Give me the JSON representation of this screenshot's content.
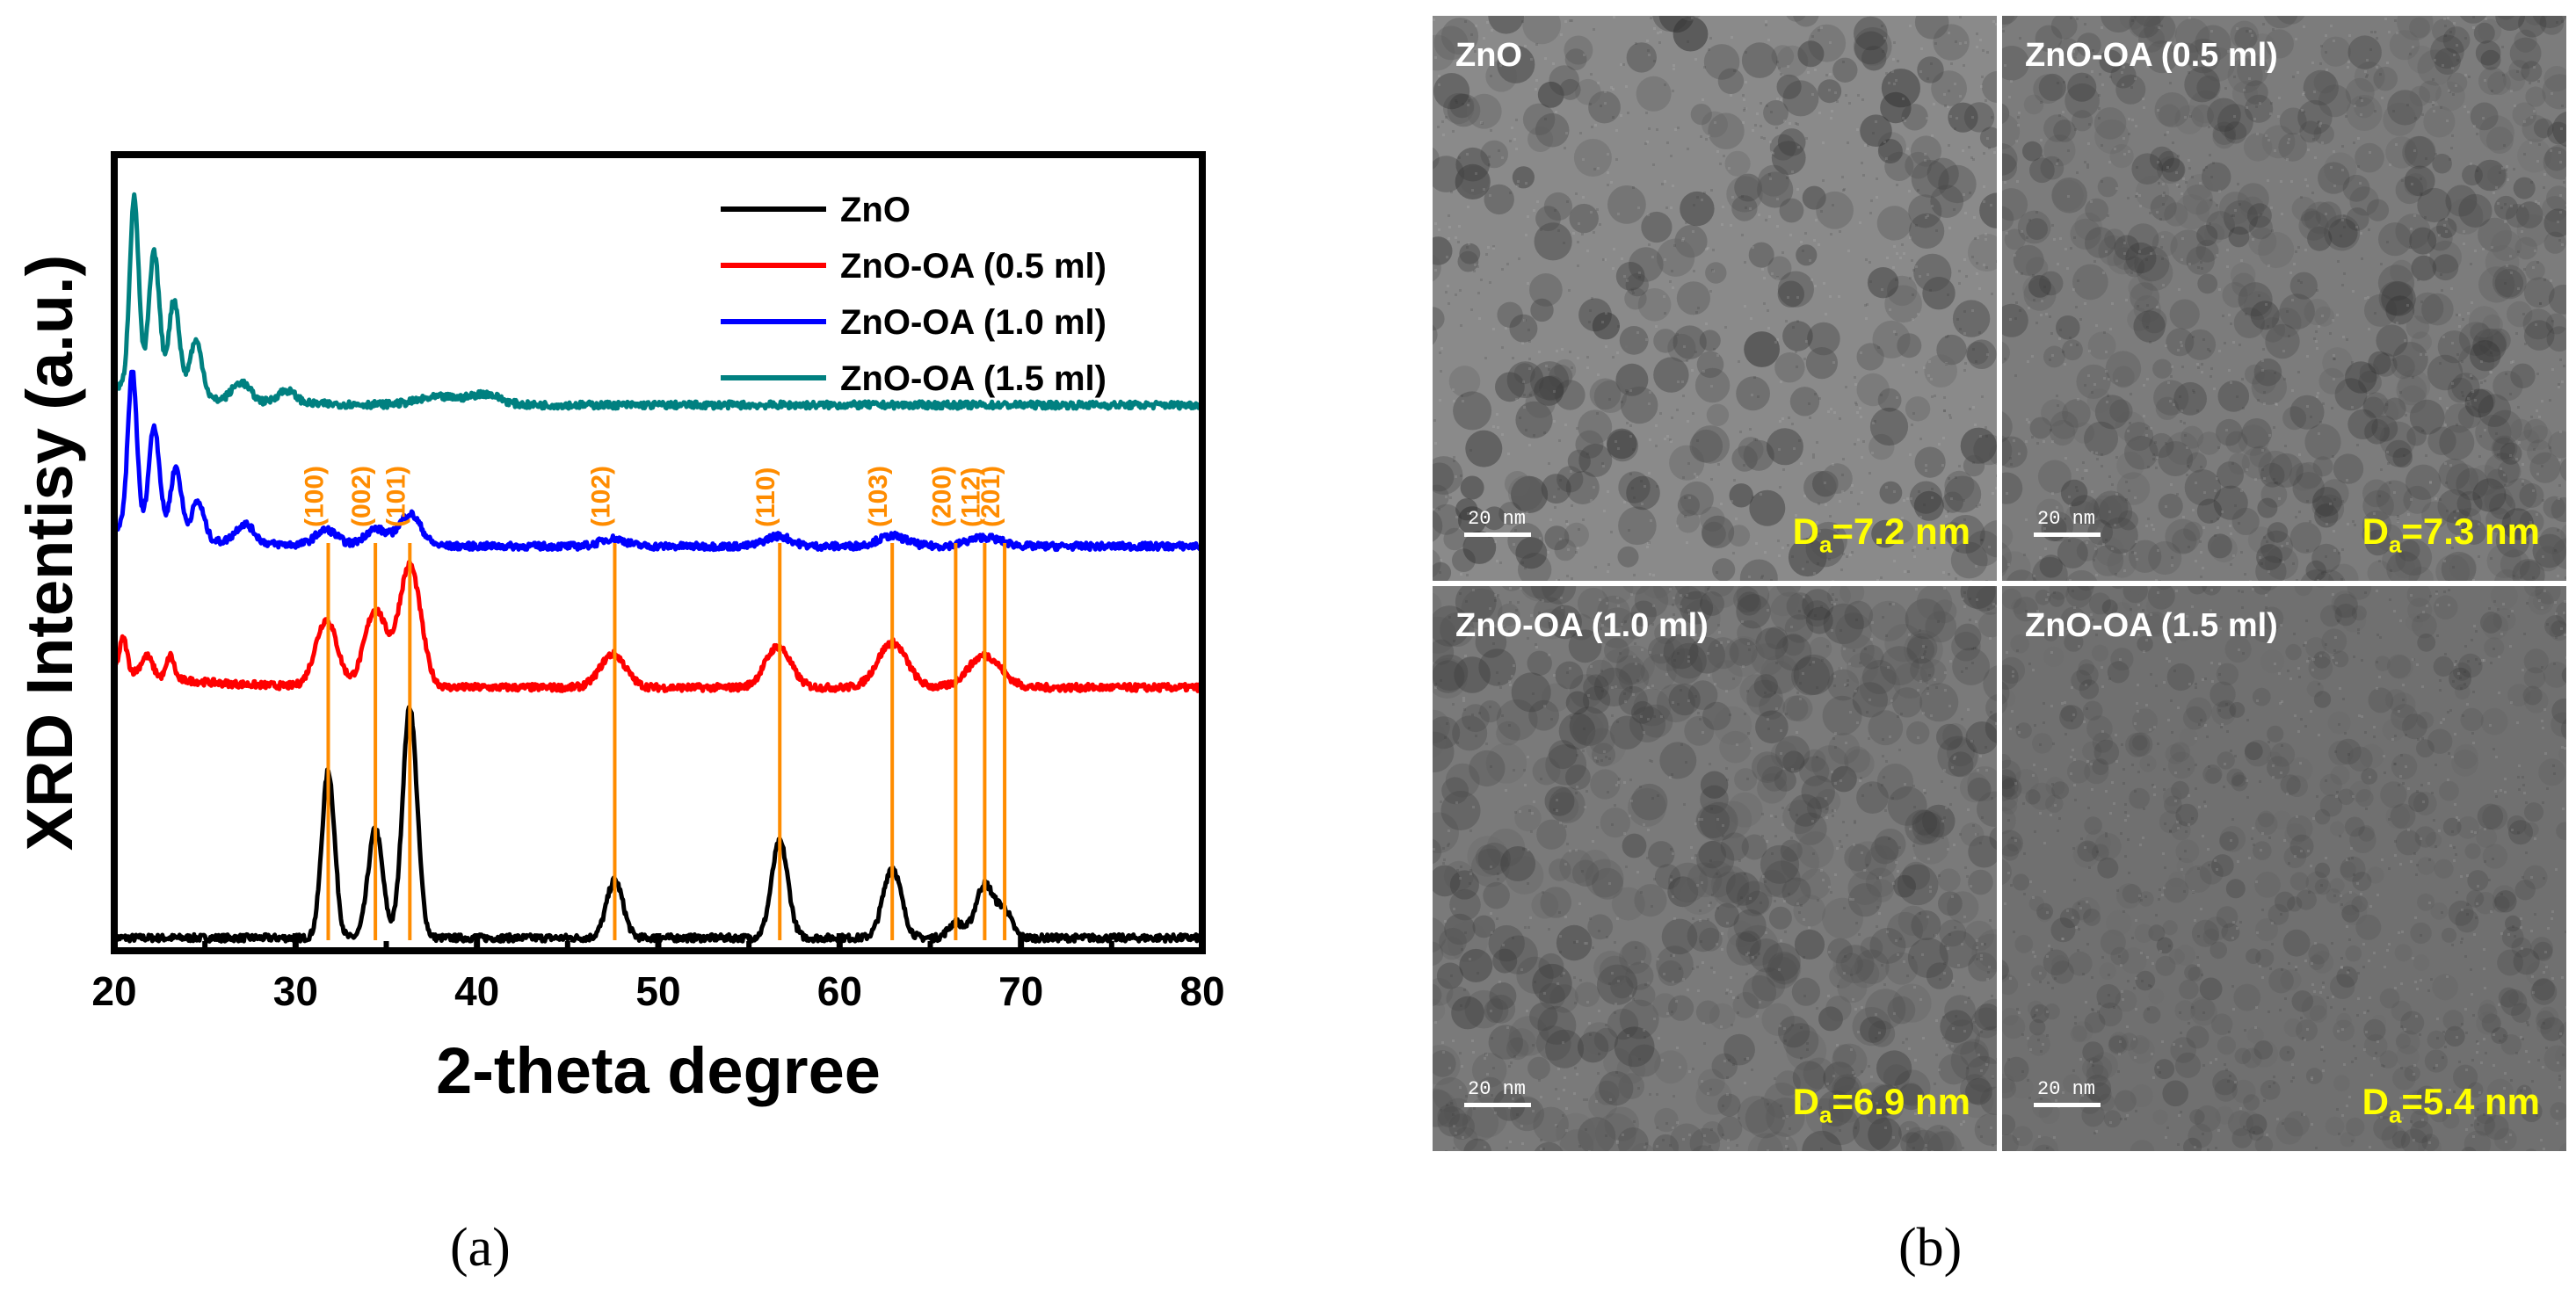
{
  "chart_data": {
    "type": "line",
    "xlabel": "2-theta degree",
    "ylabel": "XRD Intentisy (a.u.)",
    "xlim": [
      20,
      80
    ],
    "xticks": [
      20,
      30,
      40,
      50,
      60,
      70,
      80
    ],
    "legend": {
      "placement": "top-right"
    },
    "series": [
      {
        "name": "ZnO",
        "color": "#000000",
        "offset": 0,
        "baseline": 1.0,
        "peaks": [
          [
            31.8,
            13.0,
            0.35
          ],
          [
            34.4,
            8.5,
            0.4
          ],
          [
            36.3,
            18.0,
            0.4
          ],
          [
            47.6,
            4.5,
            0.45
          ],
          [
            56.7,
            7.5,
            0.45
          ],
          [
            62.9,
            5.5,
            0.5
          ],
          [
            66.4,
            1.2,
            0.4
          ],
          [
            68.0,
            4.2,
            0.5
          ],
          [
            69.1,
            2.0,
            0.4
          ]
        ],
        "low_angle": []
      },
      {
        "name": "ZnO-OA (0.5 ml)",
        "color": "#ff0000",
        "offset": 19.5,
        "baseline": 1.0,
        "peaks": [
          [
            31.7,
            5.2,
            0.6
          ],
          [
            34.4,
            6.0,
            0.6
          ],
          [
            36.3,
            9.5,
            0.6
          ],
          [
            47.5,
            2.6,
            0.7
          ],
          [
            56.6,
            3.2,
            0.7
          ],
          [
            62.9,
            3.5,
            0.8
          ],
          [
            68.0,
            2.5,
            0.9
          ]
        ],
        "low_angle": [
          [
            20.5,
            2.5,
            0.2
          ],
          [
            21.8,
            1.5,
            0.3
          ],
          [
            23.1,
            1.8,
            0.2
          ]
        ]
      },
      {
        "name": "ZnO-OA (1.0 ml)",
        "color": "#0000ff",
        "offset": 30.5,
        "baseline": 1.0,
        "peaks": [
          [
            31.7,
            1.2,
            0.6
          ],
          [
            34.4,
            1.3,
            0.6
          ],
          [
            36.3,
            2.5,
            0.6
          ],
          [
            47.5,
            0.6,
            0.7
          ],
          [
            56.6,
            0.8,
            0.7
          ],
          [
            62.9,
            0.8,
            0.8
          ],
          [
            68.0,
            0.7,
            0.9
          ]
        ],
        "low_angle": [
          [
            21.0,
            12.5,
            0.25
          ],
          [
            22.2,
            8.5,
            0.3
          ],
          [
            23.4,
            5.5,
            0.3
          ],
          [
            24.6,
            3.0,
            0.35
          ],
          [
            27.2,
            1.5,
            0.5
          ]
        ]
      },
      {
        "name": "ZnO-OA (1.5 ml)",
        "color": "#008080",
        "offset": 41.5,
        "baseline": 1.0,
        "peaks": [
          [
            38.0,
            0.6,
            1.2
          ],
          [
            40.5,
            0.8,
            0.8
          ]
        ],
        "low_angle": [
          [
            21.1,
            15.0,
            0.25
          ],
          [
            22.2,
            11.0,
            0.3
          ],
          [
            23.3,
            7.5,
            0.3
          ],
          [
            24.5,
            4.5,
            0.35
          ],
          [
            27.0,
            1.5,
            0.5
          ],
          [
            29.5,
            1.0,
            0.5
          ]
        ]
      }
    ],
    "reference_lines": [
      {
        "label": "(100)",
        "x": 31.8
      },
      {
        "label": "(002)",
        "x": 34.4
      },
      {
        "label": "(101)",
        "x": 36.3
      },
      {
        "label": "(102)",
        "x": 47.6
      },
      {
        "label": "(110)",
        "x": 56.7
      },
      {
        "label": "(103)",
        "x": 62.9
      },
      {
        "label": "(200)",
        "x": 66.4
      },
      {
        "label": "(112)",
        "x": 68.0
      },
      {
        "label": "(201)",
        "x": 69.1
      }
    ],
    "reference_color": "#ff8c00",
    "ylim": [
      0,
      62
    ]
  },
  "captions": {
    "a": "(a)",
    "b": "(b)"
  },
  "tem_panels": [
    {
      "label": "ZnO",
      "da_prefix": "D",
      "da_sub": "a",
      "da_value": "=7.2 nm",
      "scale": "20 nm",
      "tone": "#8a8a8a",
      "particle_size": 17,
      "contrast": 0.42
    },
    {
      "label": "ZnO-OA (0.5 ml)",
      "da_prefix": "D",
      "da_sub": "a",
      "da_value": "=7.3 nm",
      "scale": "20 nm",
      "tone": "#7c7c7c",
      "particle_size": 16,
      "contrast": 0.3
    },
    {
      "label": "ZnO-OA (1.0 ml)",
      "da_prefix": "D",
      "da_sub": "a",
      "da_value": "=6.9 nm",
      "scale": "20 nm",
      "tone": "#7a7a7a",
      "particle_size": 18,
      "contrast": 0.3
    },
    {
      "label": "ZnO-OA (1.5 ml)",
      "da_prefix": "D",
      "da_sub": "a",
      "da_value": "=5.4 nm",
      "scale": "20 nm",
      "tone": "#707070",
      "particle_size": 12,
      "contrast": 0.22
    }
  ]
}
